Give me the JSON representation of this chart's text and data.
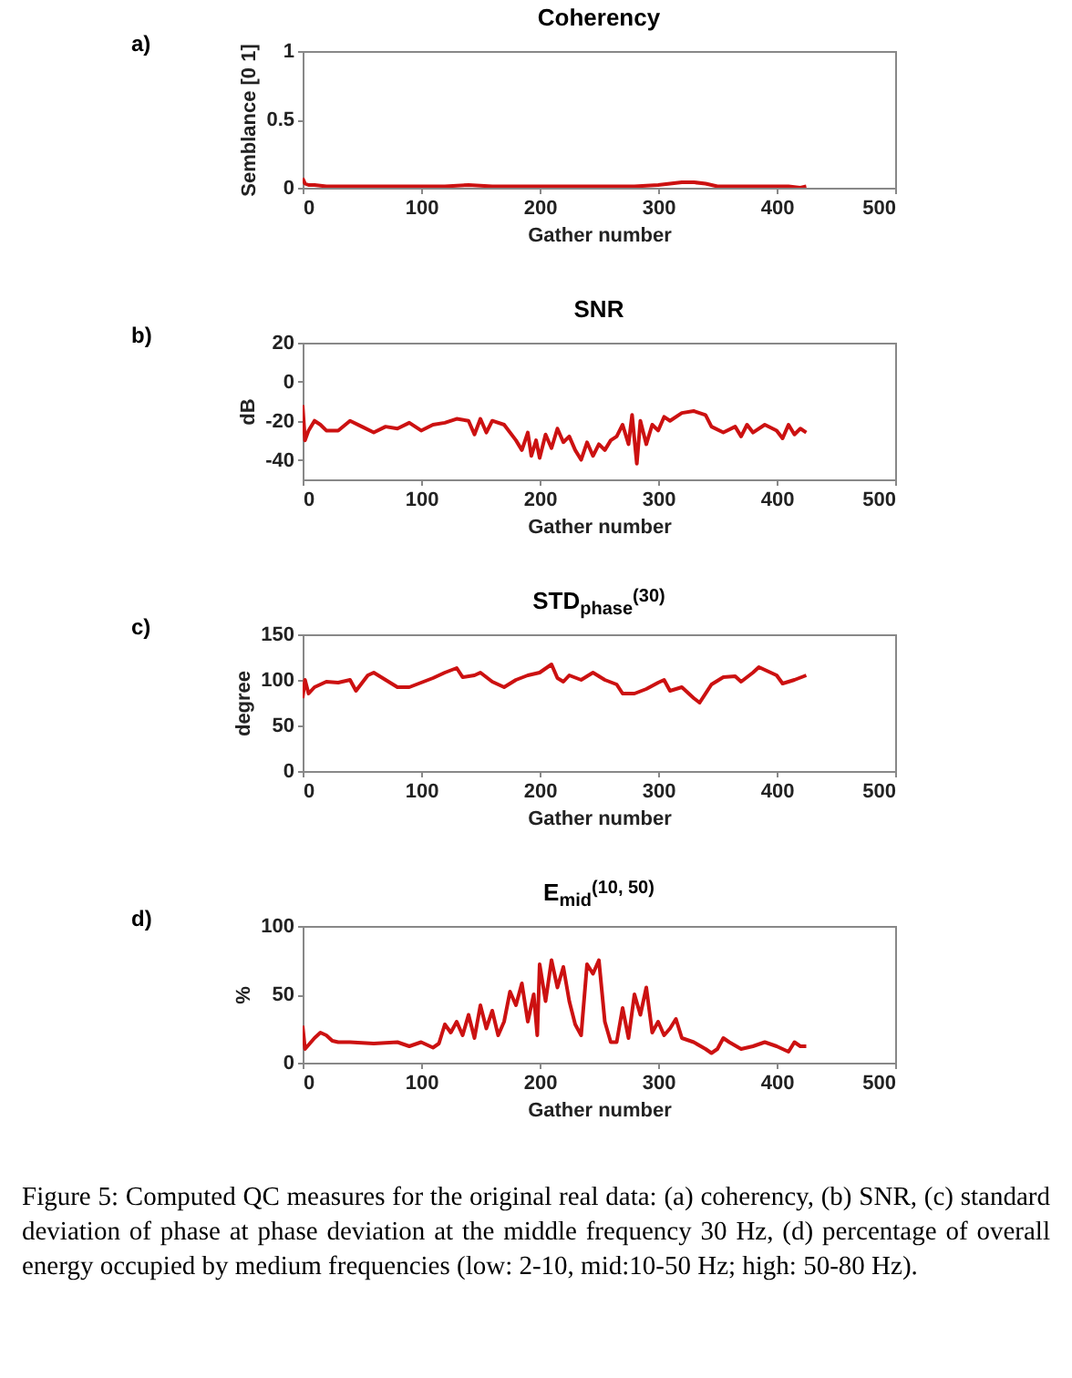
{
  "chart_data": [
    {
      "type": "line",
      "title": "Coherency",
      "xlabel": "Gather number",
      "ylabel": "Semblance [0 1]",
      "annotations": [
        "a)"
      ],
      "xlim": [
        0,
        500
      ],
      "xticks": [
        0,
        100,
        200,
        300,
        400,
        500
      ],
      "ylim": [
        0,
        1
      ],
      "yticks": [
        0,
        0.5,
        1
      ],
      "series": [
        {
          "color": "#cc1111",
          "x": [
            0,
            2,
            5,
            10,
            20,
            40,
            60,
            80,
            100,
            120,
            140,
            160,
            180,
            200,
            220,
            240,
            260,
            280,
            300,
            310,
            320,
            330,
            340,
            350,
            360,
            380,
            400,
            410,
            420,
            425
          ],
          "values": [
            0.07,
            0.03,
            0.02,
            0.02,
            0.01,
            0.01,
            0.01,
            0.01,
            0.01,
            0.01,
            0.02,
            0.01,
            0.01,
            0.01,
            0.01,
            0.01,
            0.01,
            0.01,
            0.02,
            0.03,
            0.04,
            0.04,
            0.03,
            0.01,
            0.01,
            0.01,
            0.01,
            0.01,
            0.0,
            0.01
          ]
        }
      ]
    },
    {
      "type": "line",
      "title": "SNR",
      "xlabel": "Gather number",
      "ylabel": "dB",
      "annotations": [
        "b)"
      ],
      "xlim": [
        0,
        500
      ],
      "xticks": [
        0,
        100,
        200,
        300,
        400,
        500
      ],
      "ylim": [
        -50,
        20
      ],
      "yticks": [
        -40,
        -20,
        0,
        20
      ],
      "series": [
        {
          "color": "#cc1111",
          "x": [
            0,
            2,
            5,
            10,
            15,
            20,
            30,
            40,
            50,
            60,
            70,
            80,
            90,
            100,
            110,
            120,
            130,
            140,
            145,
            150,
            155,
            160,
            170,
            180,
            185,
            190,
            193,
            197,
            200,
            205,
            210,
            215,
            220,
            225,
            230,
            235,
            240,
            245,
            250,
            255,
            260,
            265,
            270,
            275,
            278,
            282,
            285,
            290,
            295,
            300,
            305,
            310,
            320,
            330,
            340,
            345,
            355,
            365,
            370,
            375,
            380,
            390,
            400,
            405,
            410,
            415,
            420,
            425
          ],
          "values": [
            -12,
            -30,
            -25,
            -20,
            -22,
            -25,
            -25,
            -20,
            -23,
            -26,
            -23,
            -24,
            -21,
            -25,
            -22,
            -21,
            -19,
            -20,
            -27,
            -19,
            -26,
            -20,
            -22,
            -30,
            -35,
            -26,
            -38,
            -30,
            -39,
            -27,
            -34,
            -24,
            -31,
            -28,
            -35,
            -40,
            -31,
            -38,
            -32,
            -35,
            -30,
            -28,
            -22,
            -32,
            -17,
            -42,
            -20,
            -32,
            -22,
            -25,
            -18,
            -20,
            -16,
            -15,
            -17,
            -23,
            -26,
            -23,
            -28,
            -22,
            -26,
            -22,
            -25,
            -29,
            -22,
            -27,
            -24,
            -26
          ]
        }
      ]
    },
    {
      "type": "line",
      "title": "STD$_{phase}$$^{(30)}$",
      "xlabel": "Gather number",
      "ylabel": "degree",
      "annotations": [
        "c)"
      ],
      "xlim": [
        0,
        500
      ],
      "xticks": [
        0,
        100,
        200,
        300,
        400,
        500
      ],
      "ylim": [
        0,
        150
      ],
      "yticks": [
        0,
        50,
        100,
        150
      ],
      "series": [
        {
          "color": "#cc1111",
          "x": [
            0,
            2,
            5,
            10,
            20,
            30,
            40,
            45,
            55,
            60,
            70,
            80,
            90,
            100,
            110,
            120,
            130,
            135,
            145,
            150,
            160,
            170,
            180,
            190,
            200,
            210,
            215,
            220,
            225,
            235,
            245,
            255,
            265,
            270,
            280,
            290,
            300,
            305,
            310,
            320,
            330,
            335,
            345,
            355,
            365,
            370,
            380,
            385,
            395,
            400,
            405,
            415,
            425
          ],
          "values": [
            80,
            100,
            85,
            92,
            98,
            97,
            100,
            88,
            105,
            108,
            100,
            92,
            92,
            97,
            102,
            108,
            113,
            103,
            105,
            108,
            98,
            92,
            100,
            105,
            108,
            117,
            102,
            98,
            105,
            100,
            108,
            100,
            95,
            85,
            85,
            90,
            97,
            100,
            88,
            92,
            80,
            75,
            95,
            103,
            104,
            98,
            108,
            114,
            108,
            105,
            96,
            100,
            105
          ]
        }
      ]
    },
    {
      "type": "line",
      "title": "E$_{mid}$$^{(10, 50)}$",
      "xlabel": "Gather number",
      "ylabel": "%",
      "annotations": [
        "d)",
        "Figure 5: Computed QC measures for the original real data: (a) coherency, (b) SNR, (c) standard deviation of phase at phase deviation at the middle frequency 30 Hz, (d) percentage of overall energy occupied by medium frequencies  (low: 2-10, mid:10-50 Hz; high: 50-80 Hz)."
      ],
      "xlim": [
        0,
        500
      ],
      "xticks": [
        0,
        100,
        200,
        300,
        400,
        500
      ],
      "ylim": [
        0,
        100
      ],
      "yticks": [
        0,
        50,
        100
      ],
      "series": [
        {
          "color": "#cc1111",
          "x": [
            0,
            2,
            10,
            15,
            20,
            25,
            30,
            40,
            60,
            80,
            90,
            100,
            110,
            115,
            120,
            125,
            130,
            135,
            140,
            145,
            150,
            155,
            160,
            165,
            170,
            175,
            180,
            185,
            190,
            195,
            198,
            200,
            205,
            210,
            215,
            220,
            225,
            230,
            235,
            240,
            245,
            250,
            255,
            260,
            265,
            270,
            275,
            280,
            285,
            290,
            295,
            300,
            305,
            310,
            315,
            320,
            330,
            340,
            345,
            350,
            355,
            360,
            370,
            380,
            390,
            400,
            410,
            415,
            420,
            425
          ],
          "values": [
            27,
            10,
            18,
            22,
            20,
            16,
            15,
            15,
            14,
            15,
            12,
            15,
            11,
            14,
            28,
            22,
            30,
            20,
            35,
            18,
            42,
            25,
            38,
            20,
            30,
            52,
            42,
            58,
            30,
            50,
            20,
            72,
            45,
            75,
            55,
            70,
            45,
            28,
            20,
            72,
            65,
            75,
            30,
            15,
            15,
            40,
            18,
            50,
            35,
            55,
            22,
            30,
            20,
            25,
            32,
            18,
            15,
            10,
            7,
            10,
            18,
            15,
            10,
            12,
            15,
            12,
            8,
            15,
            12,
            12
          ]
        }
      ]
    }
  ]
}
